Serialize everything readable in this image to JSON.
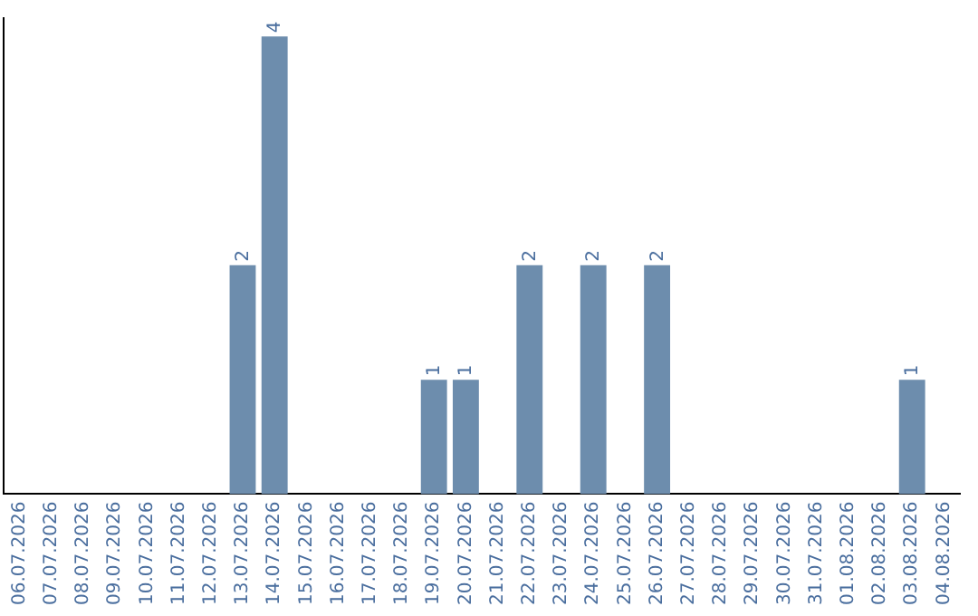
{
  "chart_data": {
    "type": "bar",
    "categories": [
      "06.07.2026",
      "07.07.2026",
      "08.07.2026",
      "09.07.2026",
      "10.07.2026",
      "11.07.2026",
      "12.07.2026",
      "13.07.2026",
      "14.07.2026",
      "15.07.2026",
      "16.07.2026",
      "17.07.2026",
      "18.07.2026",
      "19.07.2026",
      "20.07.2026",
      "21.07.2026",
      "22.07.2026",
      "23.07.2026",
      "24.07.2026",
      "25.07.2026",
      "26.07.2026",
      "27.07.2026",
      "28.07.2026",
      "29.07.2026",
      "30.07.2026",
      "31.07.2026",
      "01.08.2026",
      "02.08.2026",
      "03.08.2026",
      "04.08.2026"
    ],
    "values": [
      0,
      0,
      0,
      0,
      0,
      0,
      0,
      2,
      4,
      0,
      0,
      0,
      0,
      1,
      1,
      0,
      2,
      0,
      2,
      0,
      2,
      0,
      0,
      0,
      0,
      0,
      0,
      0,
      1,
      0
    ],
    "value_labels": [
      null,
      null,
      null,
      null,
      null,
      null,
      null,
      "2",
      "4",
      null,
      null,
      null,
      null,
      "1",
      "1",
      null,
      "2",
      null,
      "2",
      null,
      "2",
      null,
      null,
      null,
      null,
      null,
      null,
      null,
      "1",
      null
    ],
    "color": "#6d8dad",
    "tick_labels": "x",
    "grid": false,
    "legend": false
  }
}
